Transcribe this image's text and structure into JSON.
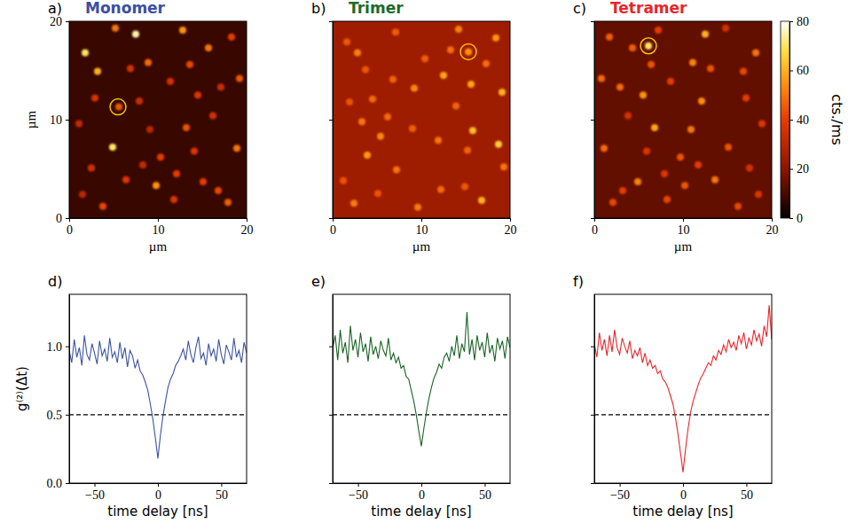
{
  "chart_data": [
    {
      "type": "image",
      "panel": "a)",
      "title": "Monomer",
      "color": "#3b4fa3",
      "xlabel": "µm",
      "ylabel": "µm",
      "xlim": [
        0,
        20
      ],
      "ylim": [
        0,
        20
      ],
      "xticks": [
        0,
        10,
        20
      ],
      "yticks": [
        0,
        10,
        20
      ],
      "zlim": [
        0,
        80
      ],
      "background": 8,
      "spots": {
        "x": [
          5.6,
          1.8,
          3.2,
          7.5,
          9.8,
          12.1,
          14.5,
          16.8,
          18.9,
          2.5,
          4.9,
          8.9,
          11.4,
          13.2,
          15.7,
          17.9,
          1.1,
          6.4,
          10.3,
          12.8,
          16.2,
          19.2,
          3.8,
          7.9,
          14.1,
          18.3,
          2.9,
          9.1,
          13.6,
          5.2,
          11.8,
          17.1,
          8.3,
          15.1,
          1.5,
          6.9
        ],
        "y": [
          11.3,
          16.8,
          14.9,
          18.7,
          3.3,
          4.5,
          12.5,
          2.8,
          7.1,
          5.1,
          7.2,
          15.8,
          13.9,
          9.2,
          17.3,
          1.6,
          9.6,
          3.9,
          6.2,
          19.1,
          10.4,
          14.2,
          1.2,
          11.9,
          6.8,
          18.4,
          12.2,
          9.0,
          15.6,
          19.3,
          1.9,
          13.3,
          5.4,
          3.7,
          2.4,
          15.2
        ],
        "values": [
          45,
          70,
          60,
          75,
          55,
          40,
          38,
          42,
          50,
          35,
          70,
          48,
          36,
          44,
          50,
          46,
          32,
          38,
          40,
          55,
          36,
          45,
          42,
          34,
          38,
          40,
          36,
          30,
          42,
          50,
          38,
          34,
          32,
          40,
          30,
          36
        ]
      },
      "circle": {
        "x": 5.5,
        "y": 11.3
      }
    },
    {
      "type": "image",
      "panel": "b)",
      "title": "Trimer",
      "color": "#1e6a2a",
      "xlabel": "µm",
      "tick_labels": "x",
      "xlim": [
        0,
        20
      ],
      "ylim": [
        0,
        20
      ],
      "xticks": [
        0,
        10,
        20
      ],
      "yticks": [
        0,
        10,
        20
      ],
      "zlim": [
        0,
        80
      ],
      "background": 24,
      "spots": {
        "x": [
          15.3,
          16.8,
          14.9,
          18.7,
          3.3,
          4.5,
          12.5,
          2.8,
          7.1,
          5.1,
          7.2,
          15.8,
          13.9,
          9.2,
          17.3,
          1.6,
          9.6,
          3.9,
          6.2,
          19.1,
          10.4,
          14.2,
          1.2,
          11.9,
          6.8,
          18.4,
          12.2,
          9.0,
          15.6,
          19.3,
          1.9,
          13.3,
          5.4,
          3.7,
          2.4,
          15.2
        ],
        "y": [
          16.9,
          1.8,
          3.2,
          7.5,
          9.8,
          12.1,
          14.5,
          16.8,
          18.9,
          2.5,
          4.9,
          8.9,
          11.4,
          13.2,
          15.7,
          17.9,
          1.1,
          6.4,
          10.3,
          12.8,
          16.2,
          19.2,
          3.8,
          7.9,
          14.1,
          18.3,
          2.9,
          9.1,
          13.6,
          5.2,
          11.8,
          17.1,
          8.3,
          15.1,
          1.5,
          6.9
        ],
        "values": [
          55,
          60,
          45,
          65,
          50,
          48,
          58,
          52,
          46,
          44,
          50,
          62,
          47,
          53,
          49,
          45,
          51,
          56,
          48,
          60,
          46,
          52,
          44,
          50,
          47,
          55,
          48,
          46,
          58,
          50,
          44,
          49,
          53,
          45,
          51,
          47
        ]
      },
      "circle": {
        "x": 15.3,
        "y": 16.9
      }
    },
    {
      "type": "image",
      "panel": "c)",
      "title": "Tetramer",
      "color": "#e8262a",
      "xlabel": "µm",
      "tick_labels": "x",
      "xlim": [
        0,
        20
      ],
      "ylim": [
        0,
        20
      ],
      "xticks": [
        0,
        10,
        20
      ],
      "yticks": [
        0,
        10,
        20
      ],
      "zlim": [
        0,
        80
      ],
      "background": 14,
      "colorbar": {
        "ticks": [
          0,
          20,
          40,
          60,
          80
        ],
        "label": "cts./ms"
      },
      "spots": {
        "x": [
          6.1,
          18.2,
          16.8,
          12.5,
          10.2,
          7.9,
          5.5,
          3.2,
          1.1,
          17.5,
          15.1,
          11.1,
          8.6,
          6.8,
          4.3,
          2.1,
          18.9,
          13.6,
          9.7,
          7.2,
          3.8,
          0.8,
          16.2,
          12.1,
          5.9,
          1.7,
          17.1,
          10.9,
          6.4,
          14.8,
          8.2,
          2.9,
          11.7,
          4.9,
          18.5,
          13.1
        ],
        "y": [
          17.5,
          16.8,
          14.9,
          18.7,
          3.3,
          4.5,
          12.5,
          2.8,
          7.1,
          5.1,
          7.2,
          15.8,
          13.9,
          9.2,
          17.3,
          1.6,
          9.6,
          3.9,
          6.2,
          19.1,
          10.4,
          14.2,
          1.2,
          11.9,
          6.8,
          18.4,
          12.2,
          9.0,
          15.6,
          19.3,
          1.9,
          13.3,
          5.4,
          3.7,
          2.4,
          15.2
        ],
        "values": [
          70,
          50,
          42,
          60,
          45,
          38,
          55,
          40,
          48,
          36,
          44,
          52,
          40,
          58,
          46,
          42,
          38,
          50,
          44,
          40,
          36,
          48,
          42,
          54,
          38,
          46,
          40,
          50,
          44,
          36,
          42,
          48,
          40,
          52,
          38,
          44
        ]
      },
      "circle": {
        "x": 6.1,
        "y": 17.5
      }
    },
    {
      "type": "line",
      "panel": "d)",
      "color": "#3b53a4",
      "xlabel": "time delay [ns]",
      "ylabel": "g⁽²⁾(Δt)",
      "xlim": [
        -70,
        70
      ],
      "ylim": [
        0,
        1.38
      ],
      "xticks": [
        {
          "value": -50,
          "label": "−50"
        },
        0,
        50
      ],
      "yticks": [
        {
          "value": 0,
          "label": "0.0"
        },
        {
          "value": 0.5,
          "label": "0.5"
        },
        {
          "value": 1,
          "label": "1.0"
        }
      ],
      "hline": 0.5,
      "x": [
        -70,
        -68,
        -66,
        -64,
        -62,
        -60,
        -58,
        -56,
        -54,
        -52,
        -50,
        -48,
        -46,
        -44,
        -42,
        -40,
        -38,
        -36,
        -34,
        -32,
        -30,
        -28,
        -26,
        -24,
        -22,
        -20,
        -18,
        -16,
        -14,
        -12,
        -10,
        -8,
        -6,
        -4,
        -2,
        0,
        2,
        4,
        6,
        8,
        10,
        12,
        14,
        16,
        18,
        20,
        22,
        24,
        26,
        28,
        30,
        32,
        34,
        36,
        38,
        40,
        42,
        44,
        46,
        48,
        50,
        52,
        54,
        56,
        58,
        60,
        62,
        64,
        66,
        68,
        70
      ],
      "values": [
        0.97,
        0.88,
        1.05,
        0.92,
        0.99,
        0.86,
        1.08,
        0.94,
        0.9,
        1.02,
        0.95,
        0.87,
        1.04,
        0.93,
        0.98,
        0.89,
        1.06,
        0.92,
        0.96,
        0.88,
        1.03,
        0.91,
        0.99,
        0.85,
        0.97,
        0.93,
        0.84,
        0.9,
        0.82,
        0.79,
        0.74,
        0.68,
        0.58,
        0.47,
        0.33,
        0.18,
        0.35,
        0.49,
        0.6,
        0.7,
        0.76,
        0.8,
        0.86,
        0.89,
        0.93,
        0.98,
        0.9,
        1.04,
        0.94,
        0.88,
        0.99,
        1.07,
        0.91,
        0.95,
        0.86,
        1.02,
        0.93,
        0.98,
        0.89,
        1.05,
        0.94,
        0.87,
        1.01,
        0.96,
        0.9,
        1.06,
        0.92,
        0.97,
        0.88,
        1.03,
        0.95
      ]
    },
    {
      "type": "line",
      "panel": "e)",
      "color": "#1a6324",
      "xlabel": "time delay [ns]",
      "tick_labels": "x",
      "xlim": [
        -70,
        70
      ],
      "ylim": [
        0,
        1.38
      ],
      "xticks": [
        {
          "value": -50,
          "label": "−50"
        },
        0,
        50
      ],
      "yticks": [
        0,
        0.5,
        1
      ],
      "hline": 0.5,
      "x": [
        -70,
        -68,
        -66,
        -64,
        -62,
        -60,
        -58,
        -56,
        -54,
        -52,
        -50,
        -48,
        -46,
        -44,
        -42,
        -40,
        -38,
        -36,
        -34,
        -32,
        -30,
        -28,
        -26,
        -24,
        -22,
        -20,
        -18,
        -16,
        -14,
        -12,
        -10,
        -8,
        -6,
        -4,
        -2,
        0,
        2,
        4,
        6,
        8,
        10,
        12,
        14,
        16,
        18,
        20,
        22,
        24,
        26,
        28,
        30,
        32,
        34,
        36,
        38,
        40,
        42,
        44,
        46,
        48,
        50,
        52,
        54,
        56,
        58,
        60,
        62,
        64,
        66,
        68,
        70
      ],
      "values": [
        0.98,
        1.08,
        0.9,
        1.12,
        0.95,
        1.03,
        0.88,
        1.15,
        0.97,
        1.05,
        0.92,
        1.1,
        0.96,
        1.02,
        0.89,
        1.07,
        0.94,
        1.0,
        0.91,
        1.04,
        0.97,
        0.93,
        1.06,
        0.9,
        0.95,
        0.88,
        0.92,
        0.84,
        0.86,
        0.78,
        0.76,
        0.68,
        0.6,
        0.5,
        0.38,
        0.27,
        0.4,
        0.52,
        0.62,
        0.7,
        0.77,
        0.81,
        0.87,
        0.84,
        0.92,
        0.95,
        0.89,
        1.0,
        0.93,
        1.08,
        0.91,
        1.02,
        0.96,
        1.25,
        0.94,
        1.05,
        0.9,
        1.08,
        0.97,
        1.03,
        0.92,
        1.1,
        0.95,
        1.01,
        0.89,
        1.06,
        0.98,
        1.04,
        0.91,
        1.07,
        0.99
      ]
    },
    {
      "type": "line",
      "panel": "f)",
      "color": "#e8262a",
      "xlabel": "time delay [ns]",
      "tick_labels": "x",
      "xlim": [
        -70,
        70
      ],
      "ylim": [
        0,
        1.38
      ],
      "xticks": [
        {
          "value": -50,
          "label": "−50"
        },
        0,
        50
      ],
      "yticks": [
        0,
        0.5,
        1
      ],
      "hline": 0.5,
      "x": [
        -70,
        -68,
        -66,
        -64,
        -62,
        -60,
        -58,
        -56,
        -54,
        -52,
        -50,
        -48,
        -46,
        -44,
        -42,
        -40,
        -38,
        -36,
        -34,
        -32,
        -30,
        -28,
        -26,
        -24,
        -22,
        -20,
        -18,
        -16,
        -14,
        -12,
        -10,
        -8,
        -6,
        -4,
        -2,
        0,
        2,
        4,
        6,
        8,
        10,
        12,
        14,
        16,
        18,
        20,
        22,
        24,
        26,
        28,
        30,
        32,
        34,
        36,
        38,
        40,
        42,
        44,
        46,
        48,
        50,
        52,
        54,
        56,
        58,
        60,
        62,
        64,
        66,
        68,
        70
      ],
      "values": [
        1.02,
        0.92,
        1.1,
        0.97,
        1.05,
        0.93,
        1.08,
        0.96,
        1.12,
        0.99,
        0.94,
        1.06,
        1.0,
        0.95,
        1.04,
        0.91,
        0.97,
        0.93,
        0.99,
        0.88,
        0.95,
        0.86,
        0.9,
        0.84,
        0.86,
        0.8,
        0.82,
        0.76,
        0.74,
        0.7,
        0.64,
        0.58,
        0.48,
        0.36,
        0.22,
        0.08,
        0.25,
        0.4,
        0.52,
        0.6,
        0.66,
        0.72,
        0.77,
        0.8,
        0.84,
        0.88,
        0.86,
        0.93,
        0.9,
        0.97,
        0.94,
        1.01,
        0.96,
        1.05,
        0.99,
        1.03,
        0.97,
        1.08,
        1.02,
        1.1,
        0.98,
        1.06,
        1.01,
        1.12,
        1.04,
        1.09,
        1.0,
        1.15,
        1.07,
        1.3,
        1.05
      ]
    }
  ]
}
